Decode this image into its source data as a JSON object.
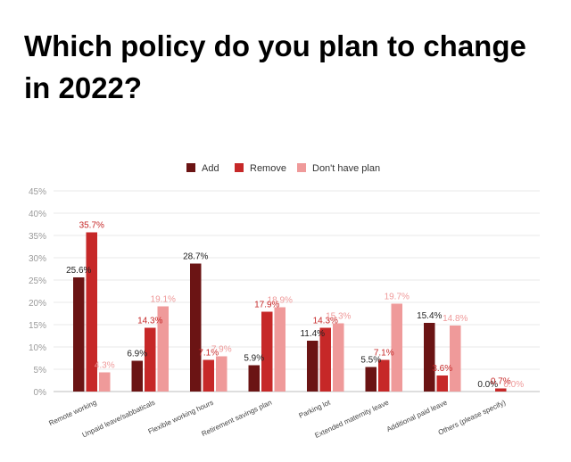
{
  "title": "Which policy do you plan to change in 2022?",
  "colors": {
    "add": "#6b1414",
    "remove": "#c62828",
    "no_plan": "#ef9a9a"
  },
  "chart_data": {
    "type": "bar",
    "title": "Which policy do you plan to change in 2022?",
    "xlabel": "",
    "ylabel": "",
    "ylim": [
      0,
      45
    ],
    "y_ticks": [
      "0%",
      "5%",
      "10%",
      "15%",
      "20%",
      "25%",
      "30%",
      "35%",
      "40%",
      "45%"
    ],
    "grid": true,
    "legend_position": "top-center",
    "categories": [
      "Remote working",
      "Unpaid leave/sabbaticals",
      "Flexible working hours",
      "Retirement savings plan",
      "Parking lot",
      "Extended maternity leave",
      "Additional paid leave",
      "Others (please specify)"
    ],
    "series": [
      {
        "name": "Add",
        "values": [
          25.6,
          6.9,
          28.7,
          5.9,
          11.4,
          5.5,
          15.4,
          0.0
        ],
        "labels": [
          "25.6%",
          "6.9%",
          "28.7%",
          "5.9%",
          "11.4%",
          "5.5%",
          "15.4%",
          "0.0%"
        ]
      },
      {
        "name": "Remove",
        "values": [
          35.7,
          14.3,
          7.1,
          17.9,
          14.3,
          7.1,
          3.6,
          0.7
        ],
        "labels": [
          "35.7%",
          "14.3%",
          "7.1%",
          "17.9%",
          "14.3%",
          "7.1%",
          "3.6%",
          "0.7%"
        ]
      },
      {
        "name": "Don't have plan",
        "values": [
          4.3,
          19.1,
          7.9,
          18.9,
          15.3,
          19.7,
          14.8,
          0.0
        ],
        "labels": [
          "4.3%",
          "19.1%",
          "7.9%",
          "18.9%",
          "15.3%",
          "19.7%",
          "14.8%",
          "0.0%"
        ]
      }
    ]
  }
}
